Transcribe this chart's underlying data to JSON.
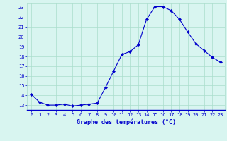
{
  "hours": [
    0,
    1,
    2,
    3,
    4,
    5,
    6,
    7,
    8,
    9,
    10,
    11,
    12,
    13,
    14,
    15,
    16,
    17,
    18,
    19,
    20,
    21,
    22,
    23
  ],
  "temperatures": [
    14.1,
    13.3,
    13.0,
    13.0,
    13.1,
    12.9,
    13.0,
    13.1,
    13.2,
    14.8,
    16.5,
    18.2,
    18.5,
    19.2,
    21.8,
    23.1,
    23.1,
    22.7,
    21.8,
    20.5,
    19.3,
    18.6,
    17.9,
    17.4
  ],
  "line_color": "#0000cc",
  "marker": "D",
  "marker_size": 2,
  "bg_color": "#d8f5f0",
  "grid_color": "#aaddcc",
  "xlabel": "Graphe des températures (°C)",
  "xlabel_color": "#0000cc",
  "tick_color": "#0000cc",
  "ylim": [
    12.5,
    23.5
  ],
  "xlim": [
    -0.5,
    23.5
  ],
  "yticks": [
    13,
    14,
    15,
    16,
    17,
    18,
    19,
    20,
    21,
    22,
    23
  ],
  "xtick_labels": [
    "0",
    "1",
    "2",
    "3",
    "4",
    "5",
    "6",
    "7",
    "8",
    "9",
    "10",
    "11",
    "12",
    "13",
    "14",
    "15",
    "16",
    "17",
    "18",
    "19",
    "20",
    "21",
    "22",
    "23"
  ]
}
